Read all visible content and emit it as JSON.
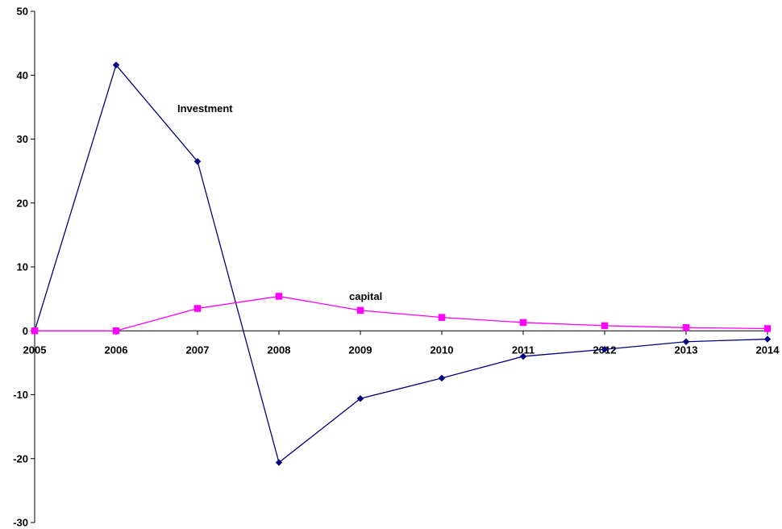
{
  "chart_data": {
    "type": "line",
    "title": "",
    "xlabel": "",
    "ylabel": "",
    "x": [
      "2005",
      "2006",
      "2007",
      "2008",
      "2009",
      "2010",
      "2011",
      "2012",
      "2013",
      "2014"
    ],
    "ylim": [
      -30,
      50
    ],
    "yticks": [
      "-30",
      "-20",
      "-10",
      "0",
      "10",
      "20",
      "30",
      "40",
      "50"
    ],
    "grid": false,
    "legend": "none",
    "series": [
      {
        "name": "Investment",
        "color": "#000080",
        "marker": "diamond",
        "values": [
          0,
          41.6,
          26.5,
          -20.6,
          -10.6,
          -7.4,
          -4.0,
          -2.9,
          -1.7,
          -1.3
        ]
      },
      {
        "name": "capital",
        "color": "#ff00ff",
        "marker": "square",
        "values": [
          0,
          0,
          3.5,
          5.4,
          3.2,
          2.1,
          1.3,
          0.8,
          0.5,
          0.35
        ]
      }
    ]
  }
}
